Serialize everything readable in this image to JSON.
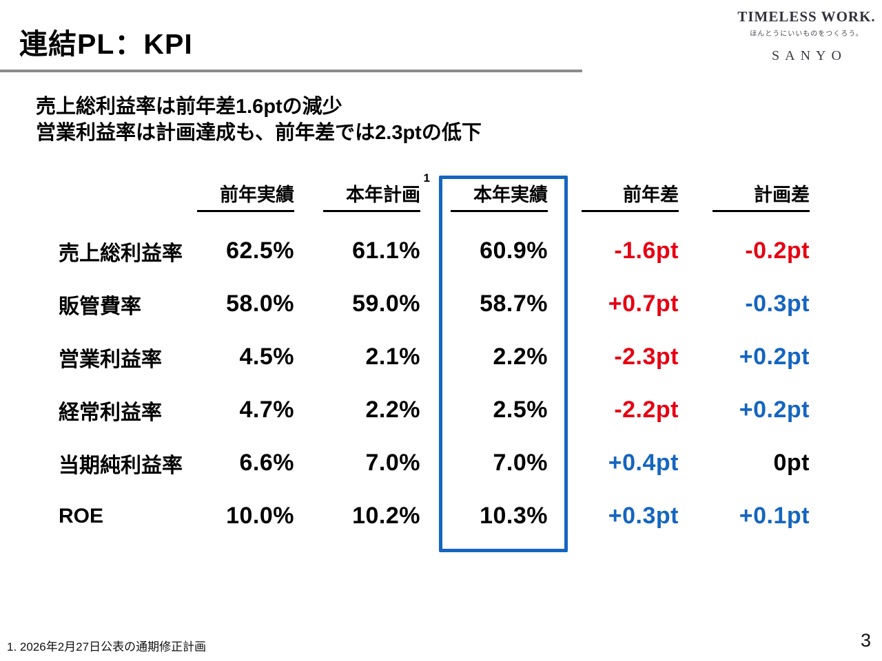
{
  "slide": {
    "title": "連結PL：KPI",
    "page_number": "3",
    "footnote": "1. 2026年2月27日公表の通期修正計画"
  },
  "logo": {
    "brand": "TIMELESS WORK.",
    "tagline": "ほんとうにいいものをつくろう。",
    "company": "SANYO"
  },
  "lead": {
    "line1": "売上総利益率は前年差1.6ptの減少",
    "line2": "営業利益率は計画達成も、前年差では2.3ptの低下"
  },
  "table": {
    "headers": {
      "prev_actual": "前年実績",
      "plan": "本年計画",
      "plan_footnote_mark": "1",
      "actual": "本年実績",
      "prev_diff": "前年差",
      "plan_diff": "計画差"
    },
    "rows": [
      {
        "label": "売上総利益率",
        "prev": "62.5%",
        "plan": "61.1%",
        "actual": "60.9%",
        "prev_diff": "-1.6pt",
        "prev_diff_color": "red",
        "plan_diff": "-0.2pt",
        "plan_diff_color": "red"
      },
      {
        "label": "販管費率",
        "prev": "58.0%",
        "plan": "59.0%",
        "actual": "58.7%",
        "prev_diff": "+0.7pt",
        "prev_diff_color": "red",
        "plan_diff": "-0.3pt",
        "plan_diff_color": "blue"
      },
      {
        "label": "営業利益率",
        "prev": "4.5%",
        "plan": "2.1%",
        "actual": "2.2%",
        "prev_diff": "-2.3pt",
        "prev_diff_color": "red",
        "plan_diff": "+0.2pt",
        "plan_diff_color": "blue"
      },
      {
        "label": "経常利益率",
        "prev": "4.7%",
        "plan": "2.2%",
        "actual": "2.5%",
        "prev_diff": "-2.2pt",
        "prev_diff_color": "red",
        "plan_diff": "+0.2pt",
        "plan_diff_color": "blue"
      },
      {
        "label": "当期純利益率",
        "prev": "6.6%",
        "plan": "7.0%",
        "actual": "7.0%",
        "prev_diff": "+0.4pt",
        "prev_diff_color": "blue",
        "plan_diff": "0pt",
        "plan_diff_color": "black"
      },
      {
        "label": "ROE",
        "prev": "10.0%",
        "plan": "10.2%",
        "actual": "10.3%",
        "prev_diff": "+0.3pt",
        "prev_diff_color": "blue",
        "plan_diff": "+0.1pt",
        "plan_diff_color": "blue"
      }
    ]
  },
  "colors": {
    "negative_red": "#e60012",
    "positive_blue": "#1565c0",
    "highlight_box_blue": "#1565c0",
    "title_rule_gray": "#8c8c8c"
  }
}
